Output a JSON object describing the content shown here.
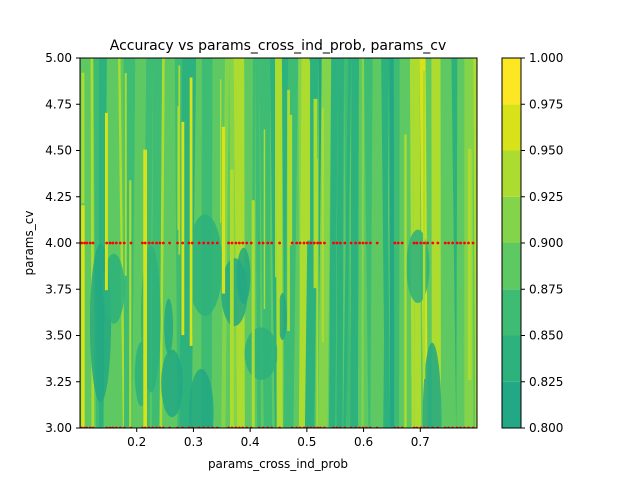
{
  "chart_data": {
    "type": "heatmap",
    "title": "Accuracy vs params_cross_ind_prob, params_cv",
    "xlabel": "params_cross_ind_prob",
    "ylabel": "params_cv",
    "xlim": [
      0.1,
      0.8
    ],
    "ylim": [
      3.0,
      5.0
    ],
    "x_ticks": [
      "0.2",
      "0.3",
      "0.4",
      "0.5",
      "0.6",
      "0.7"
    ],
    "x_tick_values": [
      0.2,
      0.3,
      0.4,
      0.5,
      0.6,
      0.7
    ],
    "y_ticks": [
      "3.00",
      "3.25",
      "3.50",
      "3.75",
      "4.00",
      "4.25",
      "4.50",
      "4.75",
      "5.00"
    ],
    "y_tick_values": [
      3.0,
      3.25,
      3.5,
      3.75,
      4.0,
      4.25,
      4.5,
      4.75,
      5.0
    ],
    "colorbar": {
      "levels": [
        0.8,
        0.825,
        0.85,
        0.875,
        0.9,
        0.925,
        0.95,
        0.975,
        1.0
      ],
      "tick_labels": [
        "0.800",
        "0.825",
        "0.850",
        "0.875",
        "0.900",
        "0.925",
        "0.950",
        "0.975",
        "1.000"
      ],
      "colors": [
        "#22a884",
        "#2db27d",
        "#3fbc73",
        "#5ec962",
        "#84d44b",
        "#addc30",
        "#d8e219",
        "#fde725"
      ]
    },
    "sample_points_x": [
      0.103,
      0.108,
      0.112,
      0.118,
      0.123,
      0.147,
      0.153,
      0.158,
      0.164,
      0.171,
      0.178,
      0.19,
      0.21,
      0.215,
      0.222,
      0.228,
      0.235,
      0.241,
      0.247,
      0.258,
      0.272,
      0.281,
      0.292,
      0.298,
      0.31,
      0.318,
      0.326,
      0.334,
      0.342,
      0.362,
      0.368,
      0.375,
      0.381,
      0.387,
      0.394,
      0.402,
      0.416,
      0.423,
      0.431,
      0.438,
      0.452,
      0.474,
      0.482,
      0.488,
      0.495,
      0.501,
      0.507,
      0.513,
      0.519,
      0.524,
      0.531,
      0.547,
      0.553,
      0.559,
      0.567,
      0.578,
      0.586,
      0.593,
      0.599,
      0.605,
      0.612,
      0.624,
      0.655,
      0.661,
      0.668,
      0.689,
      0.694,
      0.701,
      0.707,
      0.713,
      0.722,
      0.731,
      0.744,
      0.75,
      0.757,
      0.765,
      0.771,
      0.778,
      0.785,
      0.793
    ],
    "sample_point_y": 4.0,
    "sample_point_color": "#ff0000"
  }
}
